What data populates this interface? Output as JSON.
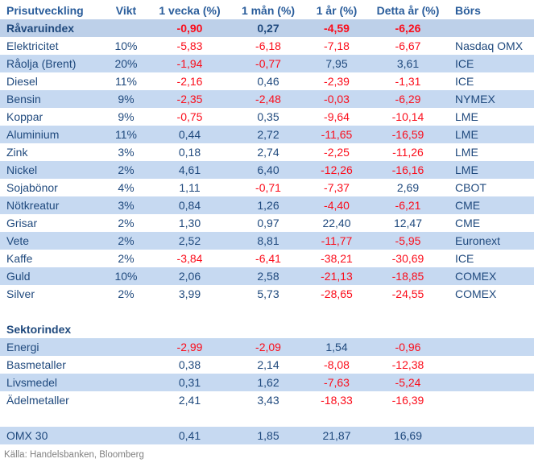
{
  "colors": {
    "navy": "#1f497d",
    "headerblue": "#2a5d9b",
    "red": "#fb0d1b",
    "row_blue": "#c6d9f1",
    "row_index": "#bdd0e9"
  },
  "footer": {
    "source_note": "Källa: Handelsbanken, Bloomberg"
  },
  "chart_data": {
    "type": "table",
    "title": "Prisutveckling",
    "columns": [
      "Prisutveckling",
      "Vikt",
      "1 vecka (%)",
      "1 mån (%)",
      "1 år (%)",
      "Detta år (%)",
      "Börs"
    ],
    "rows": [
      {
        "type": "index",
        "shade": "index",
        "bold": true,
        "name": "Råvaruindex",
        "vikt": "",
        "v1": "-0,90",
        "m1": "0,27",
        "y1": "-4,59",
        "ytd": "-6,26",
        "bors": ""
      },
      {
        "type": "data",
        "shade": "white",
        "bold": false,
        "name": "Elektricitet",
        "vikt": "10%",
        "v1": "-5,83",
        "m1": "-6,18",
        "y1": "-7,18",
        "ytd": "-6,67",
        "bors": "Nasdaq OMX"
      },
      {
        "type": "data",
        "shade": "blue",
        "bold": false,
        "name": "Råolja (Brent)",
        "vikt": "20%",
        "v1": "-1,94",
        "m1": "-0,77",
        "y1": "7,95",
        "ytd": "3,61",
        "bors": "ICE"
      },
      {
        "type": "data",
        "shade": "white",
        "bold": false,
        "name": "Diesel",
        "vikt": "11%",
        "v1": "-2,16",
        "m1": "0,46",
        "y1": "-2,39",
        "ytd": "-1,31",
        "bors": "ICE"
      },
      {
        "type": "data",
        "shade": "blue",
        "bold": false,
        "name": "Bensin",
        "vikt": "9%",
        "v1": "-2,35",
        "m1": "-2,48",
        "y1": "-0,03",
        "ytd": "-6,29",
        "bors": "NYMEX"
      },
      {
        "type": "data",
        "shade": "white",
        "bold": false,
        "name": "Koppar",
        "vikt": "9%",
        "v1": "-0,75",
        "m1": "0,35",
        "y1": "-9,64",
        "ytd": "-10,14",
        "bors": "LME"
      },
      {
        "type": "data",
        "shade": "blue",
        "bold": false,
        "name": "Aluminium",
        "vikt": "11%",
        "v1": "0,44",
        "m1": "2,72",
        "y1": "-11,65",
        "ytd": "-16,59",
        "bors": "LME"
      },
      {
        "type": "data",
        "shade": "white",
        "bold": false,
        "name": "Zink",
        "vikt": "3%",
        "v1": "0,18",
        "m1": "2,74",
        "y1": "-2,25",
        "ytd": "-11,26",
        "bors": "LME"
      },
      {
        "type": "data",
        "shade": "blue",
        "bold": false,
        "name": "Nickel",
        "vikt": "2%",
        "v1": "4,61",
        "m1": "6,40",
        "y1": "-12,26",
        "ytd": "-16,16",
        "bors": "LME"
      },
      {
        "type": "data",
        "shade": "white",
        "bold": false,
        "name": "Sojabönor",
        "vikt": "4%",
        "v1": "1,11",
        "m1": "-0,71",
        "y1": "-7,37",
        "ytd": "2,69",
        "bors": "CBOT"
      },
      {
        "type": "data",
        "shade": "blue",
        "bold": false,
        "name": "Nötkreatur",
        "vikt": "3%",
        "v1": "0,84",
        "m1": "1,26",
        "y1": "-4,40",
        "ytd": "-6,21",
        "bors": "CME"
      },
      {
        "type": "data",
        "shade": "white",
        "bold": false,
        "name": "Grisar",
        "vikt": "2%",
        "v1": "1,30",
        "m1": "0,97",
        "y1": "22,40",
        "ytd": "12,47",
        "bors": "CME"
      },
      {
        "type": "data",
        "shade": "blue",
        "bold": false,
        "name": "Vete",
        "vikt": "2%",
        "v1": "2,52",
        "m1": "8,81",
        "y1": "-11,77",
        "ytd": "-5,95",
        "bors": "Euronext"
      },
      {
        "type": "data",
        "shade": "white",
        "bold": false,
        "name": "Kaffe",
        "vikt": "2%",
        "v1": "-3,84",
        "m1": "-6,41",
        "y1": "-38,21",
        "ytd": "-30,69",
        "bors": "ICE"
      },
      {
        "type": "data",
        "shade": "blue",
        "bold": false,
        "name": "Guld",
        "vikt": "10%",
        "v1": "2,06",
        "m1": "2,58",
        "y1": "-21,13",
        "ytd": "-18,85",
        "bors": "COMEX"
      },
      {
        "type": "data",
        "shade": "white",
        "bold": false,
        "name": "Silver",
        "vikt": "2%",
        "v1": "3,99",
        "m1": "5,73",
        "y1": "-28,65",
        "ytd": "-24,55",
        "bors": "COMEX"
      },
      {
        "type": "blank",
        "shade": "white",
        "bold": false,
        "name": "",
        "vikt": "",
        "v1": "",
        "m1": "",
        "y1": "",
        "ytd": "",
        "bors": ""
      },
      {
        "type": "section",
        "shade": "white",
        "bold": true,
        "name": "Sektorindex",
        "vikt": "",
        "v1": "",
        "m1": "",
        "y1": "",
        "ytd": "",
        "bors": ""
      },
      {
        "type": "data",
        "shade": "blue",
        "bold": false,
        "name": "Energi",
        "vikt": "",
        "v1": "-2,99",
        "m1": "-2,09",
        "y1": "1,54",
        "ytd": "-0,96",
        "bors": ""
      },
      {
        "type": "data",
        "shade": "white",
        "bold": false,
        "name": "Basmetaller",
        "vikt": "",
        "v1": "0,38",
        "m1": "2,14",
        "y1": "-8,08",
        "ytd": "-12,38",
        "bors": ""
      },
      {
        "type": "data",
        "shade": "blue",
        "bold": false,
        "name": "Livsmedel",
        "vikt": "",
        "v1": "0,31",
        "m1": "1,62",
        "y1": "-7,63",
        "ytd": "-5,24",
        "bors": ""
      },
      {
        "type": "data",
        "shade": "white",
        "bold": false,
        "name": "Ädelmetaller",
        "vikt": "",
        "v1": "2,41",
        "m1": "3,43",
        "y1": "-18,33",
        "ytd": "-16,39",
        "bors": ""
      },
      {
        "type": "blank",
        "shade": "white",
        "bold": false,
        "name": "",
        "vikt": "",
        "v1": "",
        "m1": "",
        "y1": "",
        "ytd": "",
        "bors": ""
      },
      {
        "type": "data",
        "shade": "blue",
        "bold": false,
        "name": "OMX 30",
        "vikt": "",
        "v1": "0,41",
        "m1": "1,85",
        "y1": "21,87",
        "ytd": "16,69",
        "bors": ""
      }
    ]
  }
}
